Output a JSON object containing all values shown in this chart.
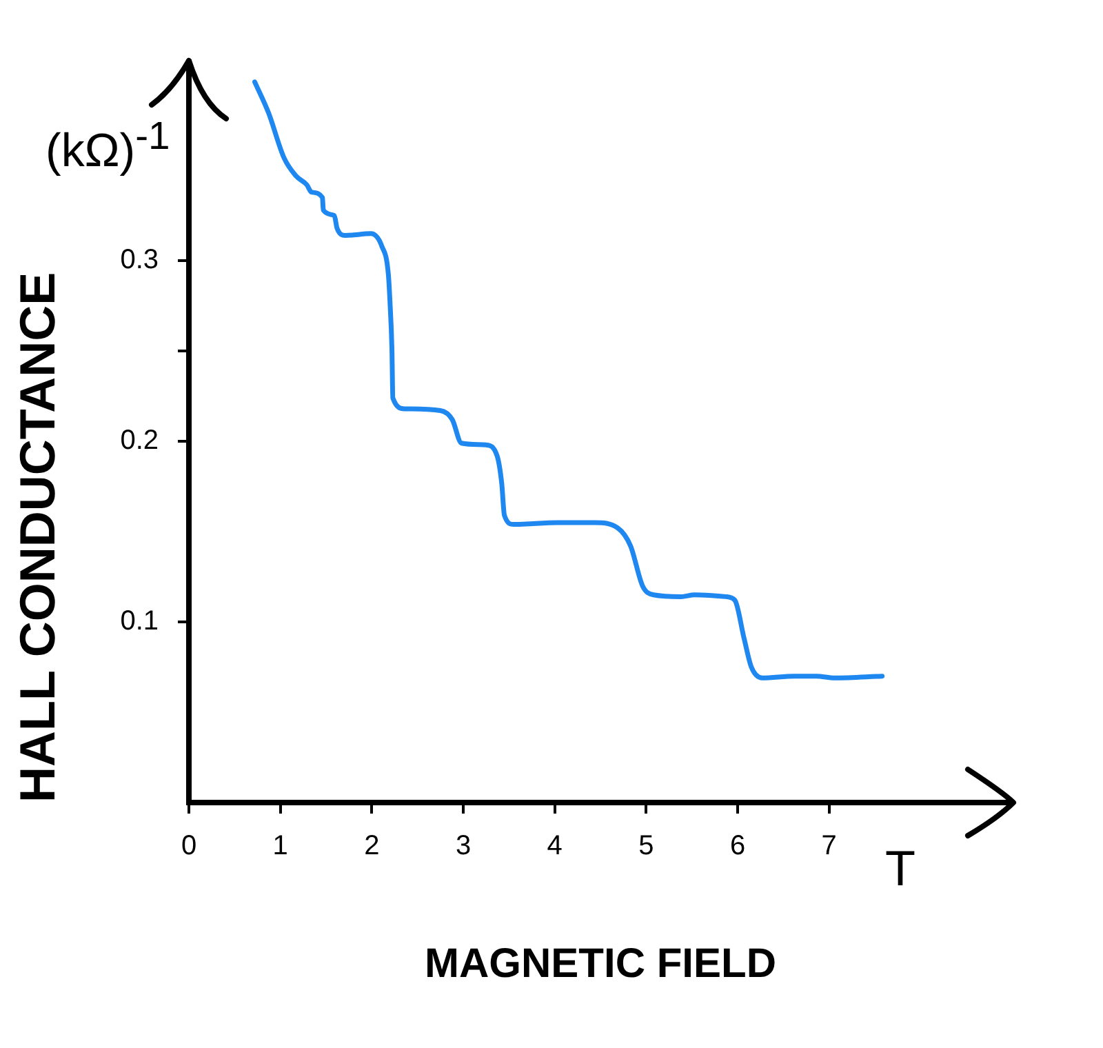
{
  "chart_data": {
    "type": "line",
    "xlabel": "MAGNETIC FIELD",
    "ylabel": "HALL CONDUCTANCE",
    "annotations": [
      "T",
      "(kΩ)$^{-1}$"
    ],
    "x": [
      0.72,
      0.87,
      1.04,
      1.17,
      1.29,
      1.34,
      1.46,
      1.47,
      1.59,
      1.62,
      1.71,
      1.99,
      2.11,
      2.18,
      2.2,
      2.22,
      2.23,
      2.36,
      2.75,
      2.88,
      2.98,
      3.25,
      3.37,
      3.42,
      3.45,
      3.55,
      4.04,
      4.44,
      4.69,
      4.83,
      4.96,
      5.08,
      5.38,
      5.53,
      5.87,
      5.97,
      6.07,
      6.15,
      6.27,
      6.62,
      6.86,
      7.06,
      7.58
    ],
    "values": [
      0.399,
      0.382,
      0.357,
      0.347,
      0.342,
      0.338,
      0.335,
      0.328,
      0.325,
      0.318,
      0.314,
      0.315,
      0.308,
      0.293,
      0.276,
      0.251,
      0.224,
      0.218,
      0.217,
      0.212,
      0.199,
      0.198,
      0.192,
      0.177,
      0.159,
      0.154,
      0.155,
      0.155,
      0.152,
      0.142,
      0.12,
      0.115,
      0.114,
      0.115,
      0.114,
      0.112,
      0.091,
      0.075,
      0.069,
      0.07,
      0.07,
      0.069,
      0.07
    ],
    "color": "#1f87f0",
    "xlim": [
      0,
      9
    ],
    "xticks": [
      0,
      1,
      2,
      3,
      4,
      5,
      6,
      7
    ],
    "ylim": [
      0,
      0.41
    ],
    "yticks": [
      0.1,
      0.2,
      {
        "value": 0.25,
        "label": null
      },
      0.3
    ],
    "grid": false,
    "legend": false,
    "marker": "none",
    "line_style": "solid"
  }
}
